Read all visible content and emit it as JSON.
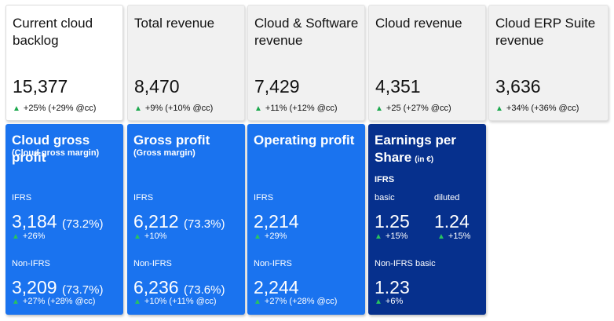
{
  "top_cards": [
    {
      "title": "Current cloud backlog",
      "value": "15,377",
      "change": "+25% (+29% @cc)"
    },
    {
      "title": "Total revenue",
      "value": "8,470",
      "change": "+9% (+10% @cc)"
    },
    {
      "title": "Cloud & Software revenue",
      "value": "7,429",
      "change": "+11% (+12% @cc)"
    },
    {
      "title": "Cloud revenue",
      "value": "4,351",
      "change": "+25 (+27% @cc)"
    },
    {
      "title": "Cloud ERP Suite revenue",
      "value": "3,636",
      "change": "+34% (+36% @cc)"
    }
  ],
  "profit_cards": [
    {
      "title": "Cloud gross profit",
      "subtitle": "(Cloud gross margin)",
      "ifrs_label": "IFRS",
      "ifrs_value": "3,184",
      "ifrs_pct": "(73.2%)",
      "ifrs_change": "+26%",
      "nonifrs_label": "Non-IFRS",
      "nonifrs_value": "3,209",
      "nonifrs_pct": "(73.7%)",
      "nonifrs_change": "+27% (+28% @cc)"
    },
    {
      "title": "Gross profit",
      "subtitle": "(Gross margin)",
      "ifrs_label": "IFRS",
      "ifrs_value": "6,212",
      "ifrs_pct": "(73.3%)",
      "ifrs_change": "+10%",
      "nonifrs_label": "Non-IFRS",
      "nonifrs_value": "6,236",
      "nonifrs_pct": "(73.6%)",
      "nonifrs_change": "+10% (+11% @cc)"
    },
    {
      "title": "Operating profit",
      "subtitle": "",
      "ifrs_label": "IFRS",
      "ifrs_value": "2,214",
      "ifrs_pct": "",
      "ifrs_change": "+29%",
      "nonifrs_label": "Non-IFRS",
      "nonifrs_value": "2,244",
      "nonifrs_pct": "",
      "nonifrs_change": "+27% (+28% @cc)"
    }
  ],
  "eps_card": {
    "title_line1": "Earnings per",
    "title_line2": "Share",
    "unit": "(in €)",
    "ifrs_label": "IFRS",
    "basic_label": "basic",
    "basic_value": "1.25",
    "basic_change": "+15%",
    "diluted_label": "diluted",
    "diluted_value": "1.24",
    "diluted_change": "+15%",
    "nonifrs_label": "Non-IFRS basic",
    "nonifrs_value": "1.23",
    "nonifrs_change": "+6%"
  },
  "colors": {
    "profit_blue": "#1a73ef",
    "eps_navy": "#06308d",
    "up_arrow": "#1da94e"
  },
  "icons": {
    "change_indicator": "triangle-up-icon"
  }
}
